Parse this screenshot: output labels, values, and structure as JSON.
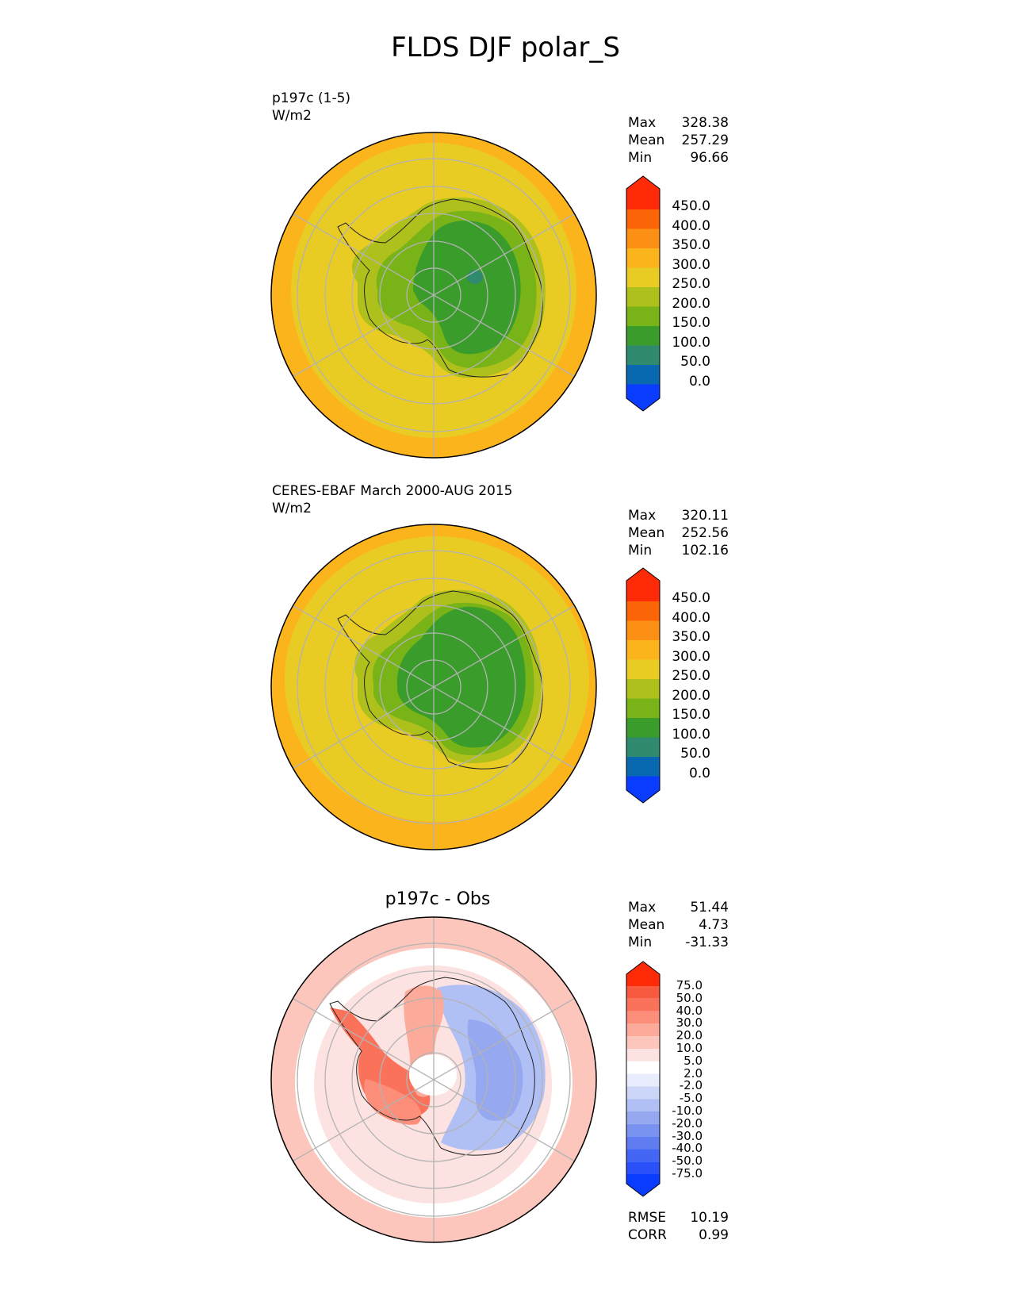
{
  "title": "FLDS DJF polar_S",
  "panels": [
    {
      "label_line1": "p197c (1-5)",
      "label_line2": "W/m2",
      "center_title": "",
      "stats": [
        {
          "name": "Max",
          "value": "328.38"
        },
        {
          "name": "Mean",
          "value": "257.29"
        },
        {
          "name": "Min",
          "value": "96.66"
        }
      ],
      "colorbar_ticks": [
        "450.0",
        "400.0",
        "350.0",
        "300.0",
        "250.0",
        "200.0",
        "150.0",
        "100.0",
        "50.0",
        "0.0"
      ]
    },
    {
      "label_line1": "CERES-EBAF March 2000-AUG 2015",
      "label_line2": "W/m2",
      "center_title": "",
      "stats": [
        {
          "name": "Max",
          "value": "320.11"
        },
        {
          "name": "Mean",
          "value": "252.56"
        },
        {
          "name": "Min",
          "value": "102.16"
        }
      ],
      "colorbar_ticks": [
        "450.0",
        "400.0",
        "350.0",
        "300.0",
        "250.0",
        "200.0",
        "150.0",
        "100.0",
        "50.0",
        "0.0"
      ]
    },
    {
      "label_line1": "",
      "label_line2": "",
      "center_title": "p197c - Obs",
      "stats": [
        {
          "name": "Max",
          "value": "51.44"
        },
        {
          "name": "Mean",
          "value": "4.73"
        },
        {
          "name": "Min",
          "value": "-31.33"
        }
      ],
      "colorbar_ticks": [
        "75.0",
        "50.0",
        "40.0",
        "30.0",
        "20.0",
        "10.0",
        "5.0",
        "2.0",
        "-2.0",
        "-5.0",
        "-10.0",
        "-20.0",
        "-30.0",
        "-40.0",
        "-50.0",
        "-75.0"
      ],
      "metrics": [
        {
          "name": "RMSE",
          "value": "10.19"
        },
        {
          "name": "CORR",
          "value": "0.99"
        }
      ]
    }
  ],
  "chart_data": [
    {
      "type": "heatmap",
      "title": "p197c (1-5)",
      "units": "W/m2",
      "projection": "south polar stereographic",
      "levels": [
        0,
        50,
        100,
        150,
        200,
        250,
        300,
        350,
        400,
        450
      ],
      "colors": [
        "#0a3cff",
        "#0868b0",
        "#2f8a70",
        "#3a9c2a",
        "#78b318",
        "#aec01c",
        "#e8cc24",
        "#fcb41c",
        "#fc9014",
        "#fc6408",
        "#ff2a08"
      ],
      "stats": {
        "max": 328.38,
        "mean": 257.29,
        "min": 96.66
      }
    },
    {
      "type": "heatmap",
      "title": "CERES-EBAF March 2000-AUG 2015",
      "units": "W/m2",
      "projection": "south polar stereographic",
      "levels": [
        0,
        50,
        100,
        150,
        200,
        250,
        300,
        350,
        400,
        450
      ],
      "colors": [
        "#0a3cff",
        "#0868b0",
        "#2f8a70",
        "#3a9c2a",
        "#78b318",
        "#aec01c",
        "#e8cc24",
        "#fcb41c",
        "#fc9014",
        "#fc6408",
        "#ff2a08"
      ],
      "stats": {
        "max": 320.11,
        "mean": 252.56,
        "min": 102.16
      }
    },
    {
      "type": "heatmap",
      "title": "p197c - Obs",
      "projection": "south polar stereographic",
      "levels": [
        -75,
        -50,
        -40,
        -30,
        -20,
        -10,
        -5,
        -2,
        2,
        5,
        10,
        20,
        30,
        40,
        50,
        75
      ],
      "colors": [
        "#0a3cff",
        "#2a50fa",
        "#4466f4",
        "#5f7cf0",
        "#7a92f0",
        "#95a8f0",
        "#b0c0f4",
        "#ccd6f8",
        "#e8ecfc",
        "#ffffff",
        "#fce2e0",
        "#fcc6bc",
        "#fcaa9a",
        "#fc8e7a",
        "#fa725a",
        "#f85a40",
        "#ff2a08"
      ],
      "stats": {
        "max": 51.44,
        "mean": 4.73,
        "min": -31.33
      },
      "rmse": 10.19,
      "corr": 0.99
    }
  ]
}
